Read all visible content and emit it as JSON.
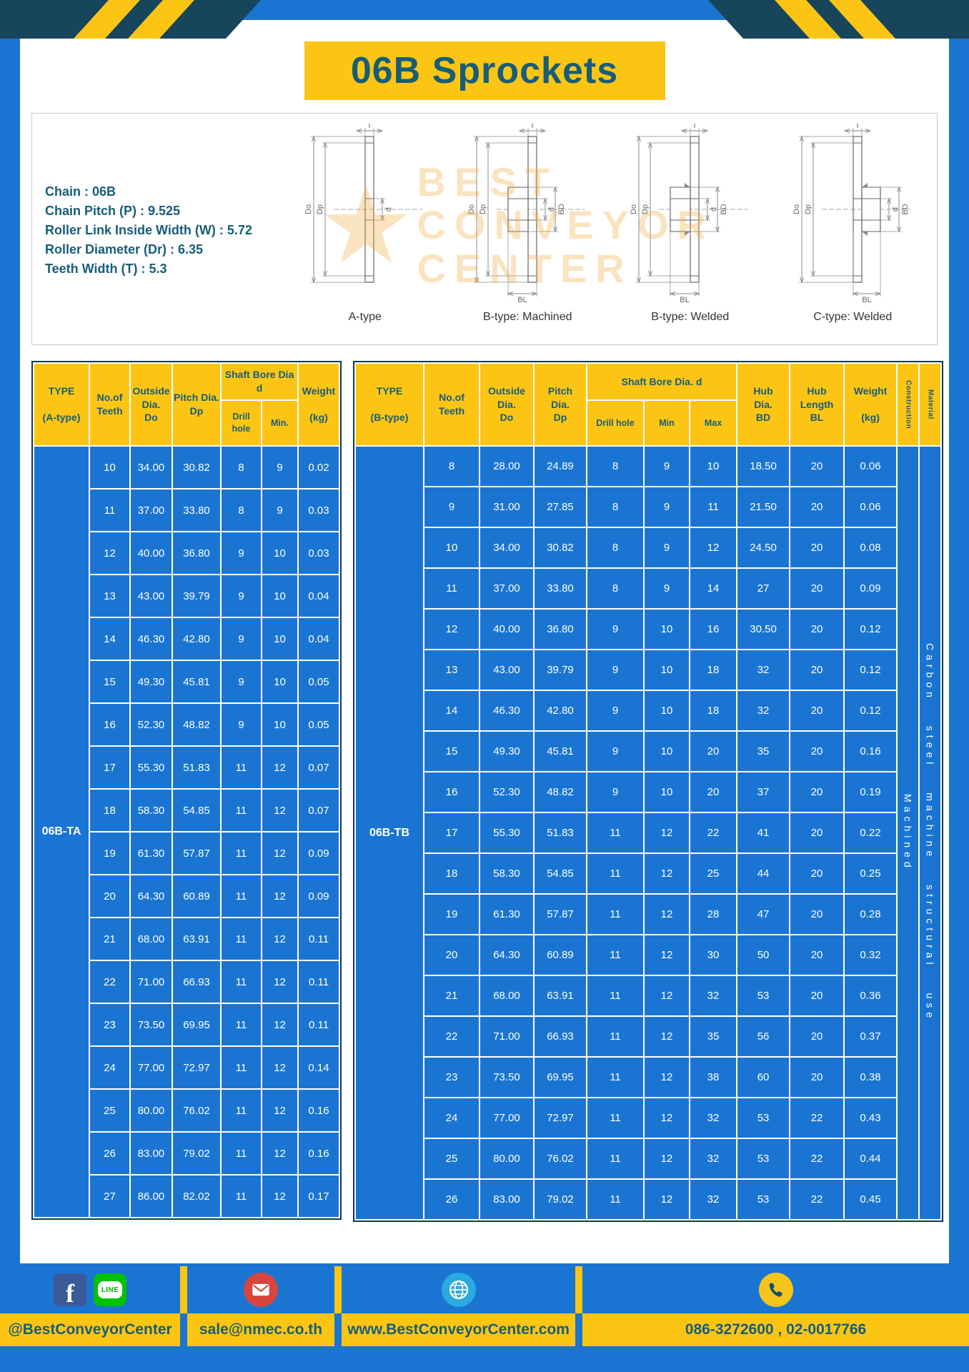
{
  "page": {
    "title": "06B Sprockets"
  },
  "specs": {
    "lines": [
      "Chain : 06B",
      "Chain Pitch (P) : 9.525",
      "Roller Link Inside Width (W) : 5.72",
      "Roller Diameter (Dr) : 6.35",
      "Teeth Width (T) : 5.3"
    ]
  },
  "watermark": {
    "line1": "BEST",
    "line2": "CONVEYOR",
    "line3": "CENTER"
  },
  "diagrams": [
    {
      "caption": "A-type",
      "labels": [
        "T",
        "Do",
        "Dp",
        "d"
      ]
    },
    {
      "caption": "B-type: Machined",
      "labels": [
        "T",
        "Do",
        "Dp",
        "d",
        "BD",
        "BL"
      ]
    },
    {
      "caption": "B-type: Welded",
      "labels": [
        "T",
        "Do",
        "Dp",
        "d",
        "BD",
        "BL"
      ]
    },
    {
      "caption": "C-type: Welded",
      "labels": [
        "T",
        "Do",
        "Dp",
        "d",
        "BD",
        "BL"
      ]
    }
  ],
  "table_a": {
    "headers": {
      "type": "TYPE\n\n(A-type)",
      "teeth": "No.of\nTeeth",
      "outside": "Outside\nDia.\nDo",
      "pitch": "Pitch Dia.\nDp",
      "bore_group": "Shaft Bore Dia d",
      "drill": "Drill hole",
      "min": "Min.",
      "weight": "Weight\n\n(kg)"
    },
    "type_value": "06B-TA",
    "rows": [
      [
        "10",
        "34.00",
        "30.82",
        "8",
        "9",
        "0.02"
      ],
      [
        "11",
        "37.00",
        "33.80",
        "8",
        "9",
        "0.03"
      ],
      [
        "12",
        "40.00",
        "36.80",
        "9",
        "10",
        "0.03"
      ],
      [
        "13",
        "43.00",
        "39.79",
        "9",
        "10",
        "0.04"
      ],
      [
        "14",
        "46.30",
        "42.80",
        "9",
        "10",
        "0.04"
      ],
      [
        "15",
        "49.30",
        "45.81",
        "9",
        "10",
        "0.05"
      ],
      [
        "16",
        "52.30",
        "48.82",
        "9",
        "10",
        "0.05"
      ],
      [
        "17",
        "55.30",
        "51.83",
        "11",
        "12",
        "0.07"
      ],
      [
        "18",
        "58.30",
        "54.85",
        "11",
        "12",
        "0.07"
      ],
      [
        "19",
        "61.30",
        "57.87",
        "11",
        "12",
        "0.09"
      ],
      [
        "20",
        "64.30",
        "60.89",
        "11",
        "12",
        "0.09"
      ],
      [
        "21",
        "68.00",
        "63.91",
        "11",
        "12",
        "0.11"
      ],
      [
        "22",
        "71.00",
        "66.93",
        "11",
        "12",
        "0.11"
      ],
      [
        "23",
        "73.50",
        "69.95",
        "11",
        "12",
        "0.11"
      ],
      [
        "24",
        "77.00",
        "72.97",
        "11",
        "12",
        "0.14"
      ],
      [
        "25",
        "80.00",
        "76.02",
        "11",
        "12",
        "0.16"
      ],
      [
        "26",
        "83.00",
        "79.02",
        "11",
        "12",
        "0.16"
      ],
      [
        "27",
        "86.00",
        "82.02",
        "11",
        "12",
        "0.17"
      ]
    ]
  },
  "table_b": {
    "headers": {
      "type": "TYPE\n\n(B-type)",
      "teeth": "No.of\nTeeth",
      "outside": "Outside\nDia.\nDo",
      "pitch": "Pitch\nDia.\nDp",
      "bore_group": "Shaft Bore Dia. d",
      "drill": "Drill hole",
      "min": "Min",
      "max": "Max",
      "hub_dia": "Hub\nDia.\nBD",
      "hub_len": "Hub\nLength\nBL",
      "weight": "Weight\n\n(kg)",
      "construction": "Construction",
      "material": "Material"
    },
    "type_value": "06B-TB",
    "construction_value": "Machined",
    "material_value": "Carbon steel machine structural use",
    "rows": [
      [
        "8",
        "28.00",
        "24.89",
        "8",
        "9",
        "10",
        "18.50",
        "20",
        "0.06"
      ],
      [
        "9",
        "31.00",
        "27.85",
        "8",
        "9",
        "11",
        "21.50",
        "20",
        "0.06"
      ],
      [
        "10",
        "34.00",
        "30.82",
        "8",
        "9",
        "12",
        "24.50",
        "20",
        "0.08"
      ],
      [
        "11",
        "37.00",
        "33.80",
        "8",
        "9",
        "14",
        "27",
        "20",
        "0.09"
      ],
      [
        "12",
        "40.00",
        "36.80",
        "9",
        "10",
        "16",
        "30.50",
        "20",
        "0.12"
      ],
      [
        "13",
        "43.00",
        "39.79",
        "9",
        "10",
        "18",
        "32",
        "20",
        "0.12"
      ],
      [
        "14",
        "46.30",
        "42.80",
        "9",
        "10",
        "18",
        "32",
        "20",
        "0.12"
      ],
      [
        "15",
        "49.30",
        "45.81",
        "9",
        "10",
        "20",
        "35",
        "20",
        "0.16"
      ],
      [
        "16",
        "52.30",
        "48.82",
        "9",
        "10",
        "20",
        "37",
        "20",
        "0.19"
      ],
      [
        "17",
        "55.30",
        "51.83",
        "11",
        "12",
        "22",
        "41",
        "20",
        "0.22"
      ],
      [
        "18",
        "58.30",
        "54.85",
        "11",
        "12",
        "25",
        "44",
        "20",
        "0.25"
      ],
      [
        "19",
        "61.30",
        "57.87",
        "11",
        "12",
        "28",
        "47",
        "20",
        "0.28"
      ],
      [
        "20",
        "64.30",
        "60.89",
        "11",
        "12",
        "30",
        "50",
        "20",
        "0.32"
      ],
      [
        "21",
        "68.00",
        "63.91",
        "11",
        "12",
        "32",
        "53",
        "20",
        "0.36"
      ],
      [
        "22",
        "71.00",
        "66.93",
        "11",
        "12",
        "35",
        "56",
        "20",
        "0.37"
      ],
      [
        "23",
        "73.50",
        "69.95",
        "11",
        "12",
        "38",
        "60",
        "20",
        "0.38"
      ],
      [
        "24",
        "77.00",
        "72.97",
        "11",
        "12",
        "32",
        "53",
        "22",
        "0.43"
      ],
      [
        "25",
        "80.00",
        "76.02",
        "11",
        "12",
        "32",
        "53",
        "22",
        "0.44"
      ],
      [
        "26",
        "83.00",
        "79.02",
        "11",
        "12",
        "32",
        "53",
        "22",
        "0.45"
      ]
    ]
  },
  "footer": {
    "facebook_letter": "f",
    "line_label": "LINE",
    "social": "@BestConveyorCenter",
    "email": "sale@nmec.co.th",
    "website": "www.BestConveyorCenter.com",
    "phone": "086-3272600 , 02-0017766"
  }
}
